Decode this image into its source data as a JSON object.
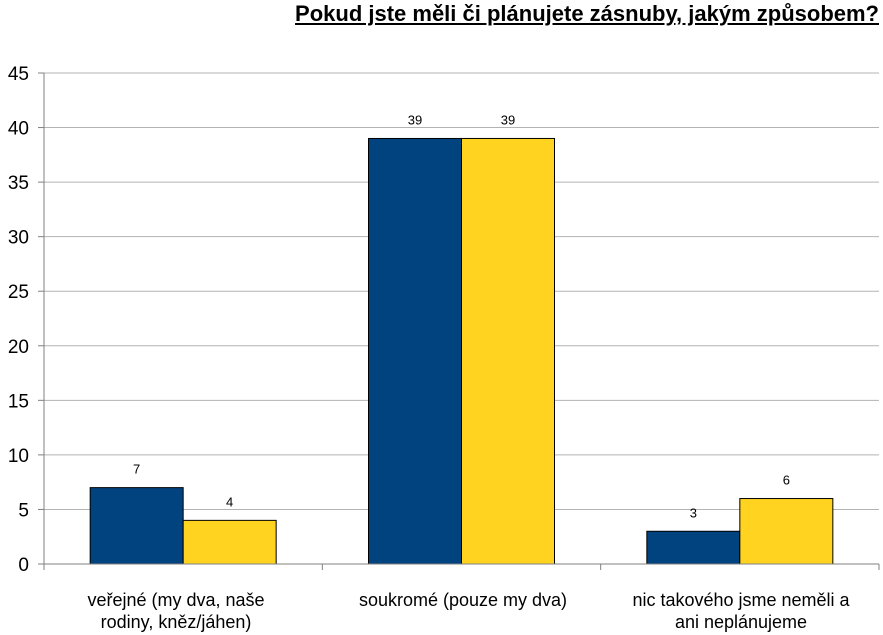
{
  "chart_data": {
    "type": "bar",
    "title": "Pokud jste měli či plánujete zásnuby, jakým způsobem?",
    "categories": [
      [
        "veřejné (my dva, naše",
        "rodiny, kněz/jáhen)"
      ],
      [
        "soukromé (pouze my dva)"
      ],
      [
        "nic takového jsme neměli a",
        "ani neplánujeme"
      ]
    ],
    "series": [
      {
        "values": [
          7,
          39,
          3
        ],
        "color": "#00437F"
      },
      {
        "values": [
          4,
          39,
          6
        ],
        "color": "#FFD320"
      }
    ],
    "ylim": [
      0,
      45
    ],
    "yticks": [
      0,
      5,
      10,
      15,
      20,
      25,
      30,
      35,
      40,
      45
    ],
    "grid": true,
    "legend": "none"
  }
}
